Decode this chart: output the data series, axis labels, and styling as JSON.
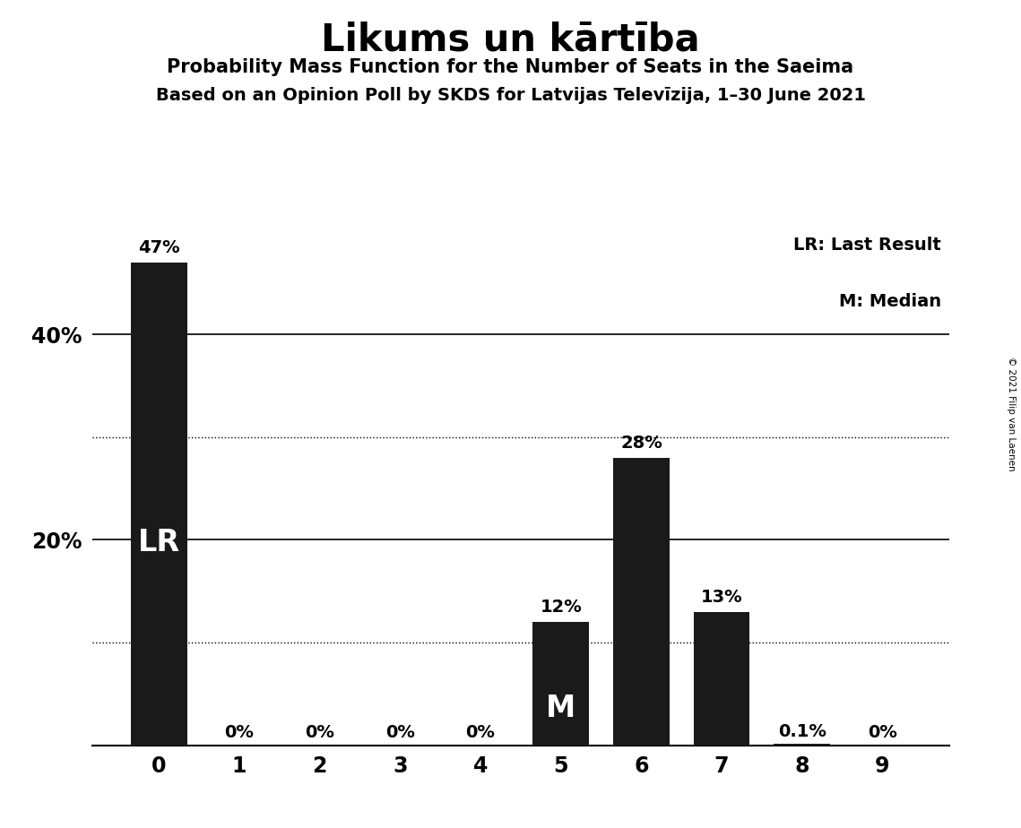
{
  "title": "Likums un kārtība",
  "subtitle1": "Probability Mass Function for the Number of Seats in the Saeima",
  "subtitle2": "Based on an Opinion Poll by SKDS for Latvijas Televīzija, 1–30 June 2021",
  "copyright": "© 2021 Filip van Laenen",
  "legend_lr": "LR: Last Result",
  "legend_m": "M: Median",
  "categories": [
    0,
    1,
    2,
    3,
    4,
    5,
    6,
    7,
    8,
    9
  ],
  "values": [
    0.47,
    0.0,
    0.0,
    0.0,
    0.0,
    0.12,
    0.28,
    0.13,
    0.001,
    0.0
  ],
  "bar_color": "#1a1a1a",
  "bar_labels": [
    "47%",
    "0%",
    "0%",
    "0%",
    "0%",
    "12%",
    "28%",
    "13%",
    "0.1%",
    "0%"
  ],
  "lr_bar_index": 0,
  "median_bar_index": 5,
  "lr_label": "LR",
  "median_label": "M",
  "ydotted_lines": [
    0.1,
    0.3
  ],
  "ysolid_lines": [
    0.2,
    0.4
  ],
  "ylim": [
    0,
    0.5
  ],
  "background_color": "#ffffff"
}
